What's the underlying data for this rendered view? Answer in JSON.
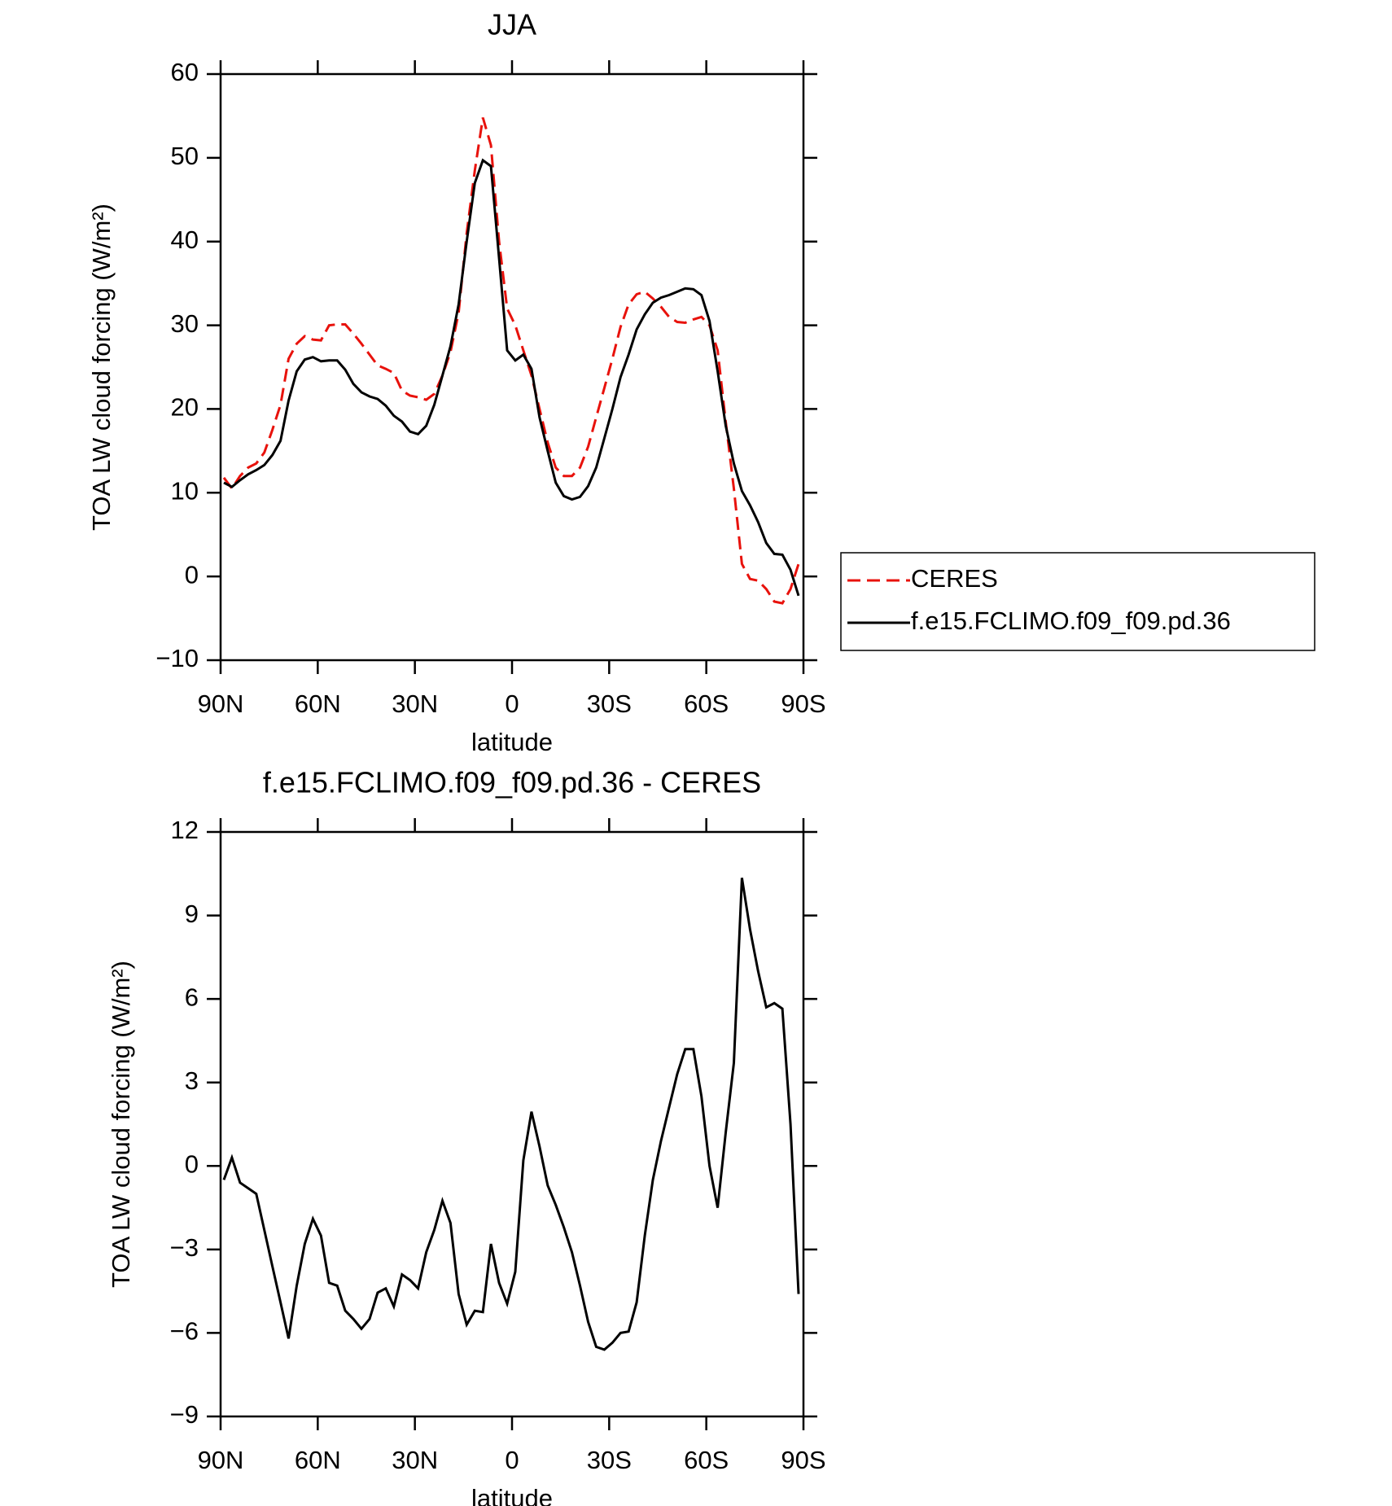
{
  "chart_data": [
    {
      "type": "line",
      "title": "JJA",
      "xlabel": "latitude",
      "ylabel": "TOA LW cloud forcing (W/m²)",
      "x": [
        89,
        86.5,
        84,
        81.5,
        79,
        76.5,
        74,
        71.5,
        69,
        66.5,
        64,
        61.5,
        59,
        56.5,
        54,
        51.5,
        49,
        46.5,
        44,
        41.5,
        39,
        36.5,
        34,
        31.5,
        29,
        26.5,
        24,
        21.5,
        19,
        16.5,
        14,
        11.5,
        9,
        6.5,
        4,
        1.5,
        -1,
        -3.5,
        -6,
        -8.5,
        -11,
        -13.5,
        -16,
        -18.5,
        -21,
        -23.5,
        -26,
        -28.5,
        -31,
        -33.5,
        -36,
        -38.5,
        -41,
        -43.5,
        -46,
        -48.5,
        -51,
        -53.5,
        -56,
        -58.5,
        -61,
        -63.5,
        -66,
        -68.5,
        -71,
        -73.5,
        -76,
        -78.5,
        -81,
        -83.5,
        -86,
        -88.5
      ],
      "series": [
        {
          "name": "CERES",
          "color": "#e8120c",
          "dash": "dashed",
          "values": [
            11.8,
            10.5,
            12,
            13,
            13.5,
            14.8,
            17.5,
            20.5,
            26,
            27.8,
            28.7,
            28.3,
            28.2,
            30,
            30.1,
            30.1,
            29,
            27.8,
            26.5,
            25.2,
            24.8,
            24.3,
            22.2,
            21.6,
            21.4,
            21.1,
            21.8,
            24,
            26.8,
            31.5,
            41,
            48.5,
            54.8,
            51.5,
            40,
            32,
            30,
            27,
            24,
            20,
            16,
            13,
            12,
            12,
            13,
            15.5,
            19,
            22.5,
            26,
            29.8,
            32.5,
            33.7,
            34,
            33.2,
            32.2,
            31,
            30.4,
            30.3,
            30.7,
            31,
            30,
            27,
            18.5,
            10.5,
            1.5,
            -0.3,
            -0.5,
            -1.5,
            -3,
            -3.2,
            -1.5,
            1.5
          ]
        },
        {
          "name": "f.e15.FCLIMO.f09_f09.pd.36",
          "color": "#000000",
          "dash": "solid",
          "values": [
            11.2,
            10.7,
            11.5,
            12.2,
            12.7,
            13.3,
            14.5,
            16.2,
            21,
            24.5,
            25.9,
            26.2,
            25.7,
            25.8,
            25.8,
            24.7,
            23,
            22,
            21.5,
            21.2,
            20.4,
            19.2,
            18.5,
            17.3,
            17,
            18,
            20.5,
            24,
            27.5,
            32.5,
            40,
            47,
            49.7,
            49,
            38,
            27,
            25.8,
            26.5,
            24.8,
            19,
            15,
            11.2,
            9.6,
            9.2,
            9.5,
            10.8,
            13,
            16.5,
            20,
            23.8,
            26.5,
            29.5,
            31.3,
            32.7,
            33.3,
            33.6,
            34,
            34.4,
            34.3,
            33.6,
            30.5,
            24.5,
            18,
            13.5,
            10.2,
            8.5,
            6.5,
            4,
            2.7,
            2.6,
            0.8,
            -2.3
          ]
        }
      ],
      "xlim": [
        90,
        -90
      ],
      "xticks": [
        {
          "value": 90,
          "label": "90N"
        },
        {
          "value": 60,
          "label": "60N"
        },
        {
          "value": 30,
          "label": "30N"
        },
        0,
        {
          "value": -30,
          "label": "30S"
        },
        {
          "value": -60,
          "label": "60S"
        },
        {
          "value": -90,
          "label": "90S"
        }
      ],
      "ylim": [
        -10,
        60
      ],
      "yticks": [
        {
          "value": -10,
          "label": "−10"
        },
        0,
        10,
        20,
        30,
        40,
        50,
        60
      ],
      "legend": "outside-right"
    },
    {
      "type": "line",
      "title": "f.e15.FCLIMO.f09_f09.pd.36 - CERES",
      "xlabel": "latitude",
      "ylabel": "TOA LW cloud forcing (W/m²)",
      "x": [
        89,
        86.5,
        84,
        81.5,
        79,
        76.5,
        74,
        71.5,
        69,
        66.5,
        64,
        61.5,
        59,
        56.5,
        54,
        51.5,
        49,
        46.5,
        44,
        41.5,
        39,
        36.5,
        34,
        31.5,
        29,
        26.5,
        24,
        21.5,
        19,
        16.5,
        14,
        11.5,
        9,
        6.5,
        4,
        1.5,
        -1,
        -3.5,
        -6,
        -8.5,
        -11,
        -13.5,
        -16,
        -18.5,
        -21,
        -23.5,
        -26,
        -28.5,
        -31,
        -33.5,
        -36,
        -38.5,
        -41,
        -43.5,
        -46,
        -48.5,
        -51,
        -53.5,
        -56,
        -58.5,
        -61,
        -63.5,
        -66,
        -68.5,
        -71,
        -73.5,
        -76,
        -78.5,
        -81,
        -83.5,
        -86,
        -88.5
      ],
      "series": [
        {
          "color": "#000000",
          "dash": "solid",
          "values": [
            -0.5,
            0.3,
            -0.6,
            -0.8,
            -1,
            -2.3,
            -3.6,
            -4.9,
            -6.2,
            -4.3,
            -2.8,
            -1.9,
            -2.5,
            -4.2,
            -4.3,
            -5.2,
            -5.5,
            -5.85,
            -5.5,
            -4.55,
            -4.4,
            -5.05,
            -3.9,
            -4.1,
            -4.4,
            -3.1,
            -2.3,
            -1.25,
            -2.05,
            -4.6,
            -5.7,
            -5.2,
            -5.25,
            -2.8,
            -4.2,
            -4.95,
            -3.8,
            0.2,
            1.95,
            0.7,
            -0.7,
            -1.4,
            -2.2,
            -3.1,
            -4.3,
            -5.6,
            -6.5,
            -6.6,
            -6.35,
            -6,
            -5.95,
            -4.9,
            -2.5,
            -0.5,
            0.9,
            2.1,
            3.3,
            4.2,
            4.2,
            2.5,
            0,
            -1.5,
            1.2,
            3.7,
            10.35,
            8.5,
            7,
            5.7,
            5.85,
            5.65,
            1.5,
            -4.6
          ]
        }
      ],
      "xlim": [
        90,
        -90
      ],
      "xticks": [
        {
          "value": 90,
          "label": "90N"
        },
        {
          "value": 60,
          "label": "60N"
        },
        {
          "value": 30,
          "label": "30N"
        },
        0,
        {
          "value": -30,
          "label": "30S"
        },
        {
          "value": -60,
          "label": "60S"
        },
        {
          "value": -90,
          "label": "90S"
        }
      ],
      "ylim": [
        -9,
        12
      ],
      "yticks": [
        {
          "value": -9,
          "label": "−9"
        },
        {
          "value": -6,
          "label": "−6"
        },
        {
          "value": -3,
          "label": "−3"
        },
        0,
        3,
        6,
        9,
        12
      ]
    }
  ]
}
